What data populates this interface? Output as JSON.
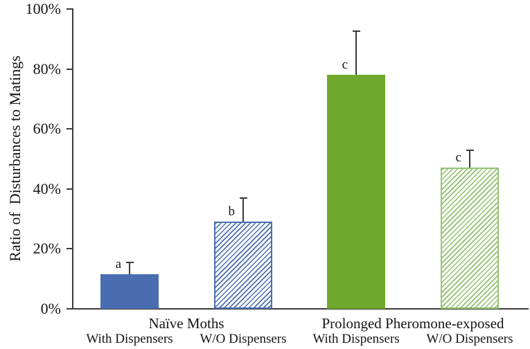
{
  "chart_data": {
    "type": "bar",
    "title": "",
    "ylabel": "Ratio of  Disturbances to Matings",
    "xlabel": "",
    "ylim": [
      0,
      100
    ],
    "yticks": [
      0,
      20,
      40,
      60,
      80,
      100
    ],
    "ytick_labels": [
      "0%",
      "20%",
      "40%",
      "60%",
      "80%",
      "100%"
    ],
    "grid": false,
    "legend": "none",
    "groups": [
      {
        "label": "Naïve Moths",
        "bars": [
          {
            "label": "With Dispensers",
            "value": 11.5,
            "error_up": 4,
            "sig_letter": "a",
            "style": "solid-blue",
            "fill": "#4a6db1",
            "pattern": "solid"
          },
          {
            "label": "W/O Dispensers",
            "value": 29,
            "error_up": 8,
            "sig_letter": "b",
            "style": "hatch-blue",
            "fill": "#4a6db1",
            "pattern": "diagonal-hatch"
          }
        ]
      },
      {
        "label": "Prolonged Pheromone-exposed",
        "bars": [
          {
            "label": "With Dispensers",
            "value": 78,
            "error_up": 14.5,
            "sig_letter": "c",
            "style": "solid-green",
            "fill": "#70a82d",
            "pattern": "solid"
          },
          {
            "label": "W/O Dispensers",
            "value": 47,
            "error_up": 6,
            "sig_letter": "c",
            "style": "hatch-green",
            "fill": "#8cbf68",
            "pattern": "diagonal-hatch"
          }
        ]
      }
    ],
    "colors": {
      "solid_blue": "#4a6db1",
      "solid_green": "#70a82d",
      "hatch_green_line": "#8cbf68",
      "axis": "#3a3a3a",
      "background": "#ffffff"
    }
  }
}
